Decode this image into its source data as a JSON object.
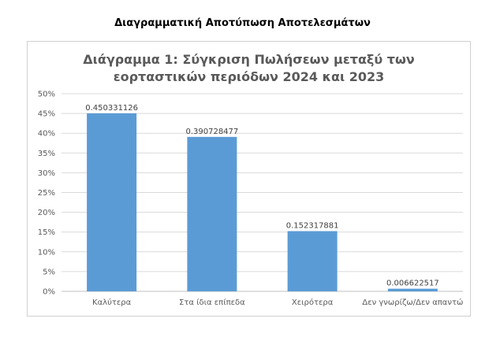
{
  "document": {
    "heading": "Διαγραμματική Αποτύπωση Αποτελεσμάτων"
  },
  "chart_data": {
    "type": "bar",
    "title_lines": [
      "Διάγραμμα 1: Σύγκριση Πωλήσεων μεταξύ των",
      "εορταστικών περιόδων 2024 και 2023"
    ],
    "categories": [
      "Καλύτερα",
      "Στα ίδια επίπεδα",
      "Χειρότερα",
      "Δεν γνωρίζω/Δεν απαντώ"
    ],
    "values": [
      0.450331126,
      0.390728477,
      0.152317881,
      0.006622517
    ],
    "data_labels": [
      "0.450331126",
      "0.390728477",
      "0.152317881",
      "0.006622517"
    ],
    "y_ticks": [
      "0%",
      "5%",
      "10%",
      "15%",
      "20%",
      "25%",
      "30%",
      "35%",
      "40%",
      "45%",
      "50%"
    ],
    "ylim": [
      0,
      0.5
    ],
    "grid": true,
    "bar_color": "#5b9bd5",
    "grid_color": "#d9d9d9"
  }
}
